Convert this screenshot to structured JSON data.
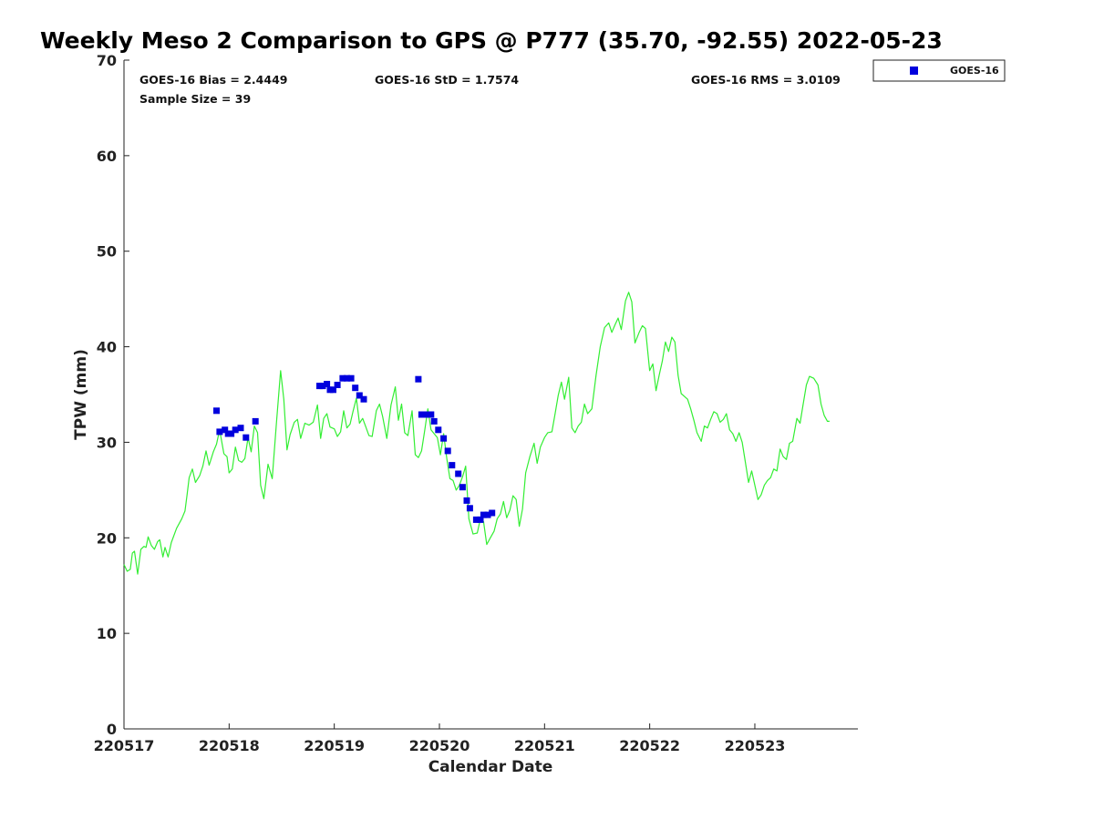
{
  "chart_data": {
    "type": "scatter",
    "title": "Weekly Meso 2 Comparison to GPS @ P777 (35.70, -92.55) 2022-05-23",
    "xlabel": "Calendar Date",
    "ylabel": "TPW (mm)",
    "xlim": [
      0,
      6.98
    ],
    "ylim": [
      0,
      70
    ],
    "x_ticks": [
      {
        "value": 0,
        "label": "220517"
      },
      {
        "value": 1,
        "label": "220518"
      },
      {
        "value": 2,
        "label": "220519"
      },
      {
        "value": 3,
        "label": "220520"
      },
      {
        "value": 4,
        "label": "220521"
      },
      {
        "value": 5,
        "label": "220522"
      },
      {
        "value": 6,
        "label": "220523"
      }
    ],
    "y_ticks": [
      0,
      10,
      20,
      30,
      40,
      50,
      60,
      70
    ],
    "grid": false,
    "legend": {
      "position": "top-right",
      "entries": [
        "GOES-16"
      ]
    },
    "stats": {
      "bias": "GOES-16 Bias = 2.4449",
      "std": "GOES-16 StD = 1.7574",
      "rms": "GOES-16 RMS = 3.0109",
      "sample_size": "Sample Size = 39"
    },
    "series": [
      {
        "name": "GOES-16",
        "kind": "scatter",
        "color": "#0000dd",
        "points": [
          [
            0.88,
            33.3
          ],
          [
            0.91,
            31.1
          ],
          [
            0.96,
            31.3
          ],
          [
            0.99,
            30.9
          ],
          [
            1.02,
            30.9
          ],
          [
            1.06,
            31.3
          ],
          [
            1.11,
            31.5
          ],
          [
            1.16,
            30.5
          ],
          [
            1.25,
            32.2
          ],
          [
            1.86,
            35.9
          ],
          [
            1.89,
            35.9
          ],
          [
            1.93,
            36.1
          ],
          [
            1.96,
            35.5
          ],
          [
            1.99,
            35.5
          ],
          [
            2.03,
            36.0
          ],
          [
            2.08,
            36.7
          ],
          [
            2.12,
            36.7
          ],
          [
            2.16,
            36.7
          ],
          [
            2.2,
            35.7
          ],
          [
            2.24,
            34.9
          ],
          [
            2.28,
            34.5
          ],
          [
            2.8,
            36.6
          ],
          [
            2.83,
            32.9
          ],
          [
            2.87,
            32.9
          ],
          [
            2.92,
            32.9
          ],
          [
            2.95,
            32.2
          ],
          [
            2.99,
            31.3
          ],
          [
            3.04,
            30.4
          ],
          [
            3.08,
            29.1
          ],
          [
            3.12,
            27.6
          ],
          [
            3.18,
            26.7
          ],
          [
            3.22,
            25.3
          ],
          [
            3.26,
            23.9
          ],
          [
            3.29,
            23.1
          ],
          [
            3.35,
            21.9
          ],
          [
            3.39,
            21.9
          ],
          [
            3.42,
            22.4
          ],
          [
            3.46,
            22.4
          ],
          [
            3.5,
            22.6
          ]
        ]
      },
      {
        "name": "GPS",
        "kind": "line",
        "color": "#33ee33",
        "points": [
          [
            0,
            17.2
          ],
          [
            0.03,
            16.5
          ],
          [
            0.06,
            16.7
          ],
          [
            0.08,
            18.4
          ],
          [
            0.1,
            18.6
          ],
          [
            0.13,
            16.2
          ],
          [
            0.16,
            18.8
          ],
          [
            0.19,
            19.1
          ],
          [
            0.21,
            19.0
          ],
          [
            0.23,
            20.1
          ],
          [
            0.26,
            19.2
          ],
          [
            0.29,
            18.8
          ],
          [
            0.32,
            19.6
          ],
          [
            0.34,
            19.8
          ],
          [
            0.37,
            18.0
          ],
          [
            0.39,
            19.0
          ],
          [
            0.42,
            18.0
          ],
          [
            0.45,
            19.5
          ],
          [
            0.5,
            21.0
          ],
          [
            0.55,
            22.0
          ],
          [
            0.58,
            22.8
          ],
          [
            0.6,
            24.5
          ],
          [
            0.62,
            26.3
          ],
          [
            0.65,
            27.2
          ],
          [
            0.68,
            25.8
          ],
          [
            0.72,
            26.5
          ],
          [
            0.75,
            27.5
          ],
          [
            0.78,
            29.1
          ],
          [
            0.81,
            27.6
          ],
          [
            0.85,
            29.0
          ],
          [
            0.88,
            29.8
          ],
          [
            0.91,
            31.3
          ],
          [
            0.95,
            28.8
          ],
          [
            0.98,
            28.5
          ],
          [
            1.0,
            26.8
          ],
          [
            1.03,
            27.2
          ],
          [
            1.06,
            29.5
          ],
          [
            1.09,
            28.1
          ],
          [
            1.12,
            27.9
          ],
          [
            1.15,
            28.3
          ],
          [
            1.18,
            30.5
          ],
          [
            1.21,
            29.0
          ],
          [
            1.24,
            31.7
          ],
          [
            1.27,
            31.0
          ],
          [
            1.3,
            25.5
          ],
          [
            1.33,
            24.1
          ],
          [
            1.37,
            27.7
          ],
          [
            1.41,
            26.2
          ],
          [
            1.45,
            32.0
          ],
          [
            1.49,
            37.5
          ],
          [
            1.52,
            34.5
          ],
          [
            1.55,
            29.2
          ],
          [
            1.58,
            30.8
          ],
          [
            1.62,
            32.1
          ],
          [
            1.65,
            32.4
          ],
          [
            1.68,
            30.4
          ],
          [
            1.72,
            32.0
          ],
          [
            1.76,
            31.8
          ],
          [
            1.8,
            32.1
          ],
          [
            1.84,
            33.9
          ],
          [
            1.87,
            30.4
          ],
          [
            1.9,
            32.5
          ],
          [
            1.93,
            33.0
          ],
          [
            1.96,
            31.6
          ],
          [
            2.0,
            31.4
          ],
          [
            2.03,
            30.6
          ],
          [
            2.06,
            31.1
          ],
          [
            2.09,
            33.3
          ],
          [
            2.12,
            31.5
          ],
          [
            2.15,
            31.9
          ],
          [
            2.18,
            33.3
          ],
          [
            2.21,
            34.6
          ],
          [
            2.24,
            32.0
          ],
          [
            2.27,
            32.5
          ],
          [
            2.3,
            31.6
          ],
          [
            2.33,
            30.7
          ],
          [
            2.36,
            30.6
          ],
          [
            2.4,
            33.3
          ],
          [
            2.43,
            34.0
          ],
          [
            2.46,
            32.7
          ],
          [
            2.5,
            30.4
          ],
          [
            2.54,
            33.9
          ],
          [
            2.58,
            35.8
          ],
          [
            2.61,
            32.3
          ],
          [
            2.64,
            34.0
          ],
          [
            2.67,
            31.0
          ],
          [
            2.7,
            30.7
          ],
          [
            2.74,
            33.3
          ],
          [
            2.77,
            28.7
          ],
          [
            2.8,
            28.4
          ],
          [
            2.83,
            29.1
          ],
          [
            2.86,
            31.2
          ],
          [
            2.89,
            33.5
          ],
          [
            2.92,
            31.3
          ],
          [
            2.95,
            30.9
          ],
          [
            2.98,
            30.5
          ],
          [
            3.01,
            28.7
          ],
          [
            3.04,
            30.9
          ],
          [
            3.07,
            28.3
          ],
          [
            3.1,
            26.2
          ],
          [
            3.13,
            26.0
          ],
          [
            3.16,
            25.0
          ],
          [
            3.19,
            25.5
          ],
          [
            3.22,
            26.4
          ],
          [
            3.25,
            27.5
          ],
          [
            3.28,
            22.0
          ],
          [
            3.32,
            20.4
          ],
          [
            3.36,
            20.5
          ],
          [
            3.39,
            22.0
          ],
          [
            3.42,
            21.7
          ],
          [
            3.45,
            19.3
          ],
          [
            3.48,
            19.9
          ],
          [
            3.52,
            20.7
          ],
          [
            3.55,
            22.0
          ],
          [
            3.58,
            22.5
          ],
          [
            3.61,
            23.8
          ],
          [
            3.64,
            22.1
          ],
          [
            3.67,
            22.9
          ],
          [
            3.7,
            24.4
          ],
          [
            3.73,
            24.0
          ],
          [
            3.76,
            21.2
          ],
          [
            3.79,
            23.0
          ],
          [
            3.82,
            26.8
          ],
          [
            3.86,
            28.5
          ],
          [
            3.9,
            29.9
          ],
          [
            3.93,
            27.8
          ],
          [
            3.96,
            29.5
          ],
          [
            4.0,
            30.5
          ],
          [
            4.03,
            31.0
          ],
          [
            4.07,
            31.1
          ],
          [
            4.1,
            33.0
          ],
          [
            4.13,
            34.9
          ],
          [
            4.16,
            36.3
          ],
          [
            4.19,
            34.5
          ],
          [
            4.23,
            36.8
          ],
          [
            4.26,
            31.5
          ],
          [
            4.29,
            31.0
          ],
          [
            4.32,
            31.7
          ],
          [
            4.35,
            32.1
          ],
          [
            4.38,
            34.0
          ],
          [
            4.41,
            33.0
          ],
          [
            4.45,
            33.5
          ],
          [
            4.49,
            37.0
          ],
          [
            4.53,
            40.0
          ],
          [
            4.57,
            42.0
          ],
          [
            4.61,
            42.5
          ],
          [
            4.64,
            41.5
          ],
          [
            4.67,
            42.3
          ],
          [
            4.7,
            43.0
          ],
          [
            4.73,
            41.8
          ],
          [
            4.77,
            44.8
          ],
          [
            4.8,
            45.7
          ],
          [
            4.83,
            44.7
          ],
          [
            4.86,
            40.4
          ],
          [
            4.9,
            41.5
          ],
          [
            4.93,
            42.2
          ],
          [
            4.96,
            41.9
          ],
          [
            5.0,
            37.5
          ],
          [
            5.03,
            38.2
          ],
          [
            5.06,
            35.4
          ],
          [
            5.09,
            37.0
          ],
          [
            5.12,
            38.5
          ],
          [
            5.15,
            40.5
          ],
          [
            5.18,
            39.5
          ],
          [
            5.21,
            41.0
          ],
          [
            5.24,
            40.5
          ],
          [
            5.27,
            37.0
          ],
          [
            5.3,
            35.1
          ],
          [
            5.33,
            34.8
          ],
          [
            5.36,
            34.5
          ],
          [
            5.39,
            33.5
          ],
          [
            5.42,
            32.3
          ],
          [
            5.45,
            31.0
          ],
          [
            5.49,
            30.1
          ],
          [
            5.52,
            31.7
          ],
          [
            5.55,
            31.5
          ],
          [
            5.58,
            32.4
          ],
          [
            5.61,
            33.2
          ],
          [
            5.64,
            33.0
          ],
          [
            5.67,
            32.1
          ],
          [
            5.7,
            32.4
          ],
          [
            5.73,
            33.0
          ],
          [
            5.76,
            31.3
          ],
          [
            5.79,
            30.9
          ],
          [
            5.82,
            30.1
          ],
          [
            5.85,
            31.0
          ],
          [
            5.88,
            30.0
          ],
          [
            5.91,
            27.9
          ],
          [
            5.94,
            25.8
          ],
          [
            5.97,
            27.0
          ],
          [
            6.0,
            25.5
          ],
          [
            6.03,
            24.0
          ],
          [
            6.06,
            24.5
          ],
          [
            6.09,
            25.5
          ],
          [
            6.12,
            26.0
          ],
          [
            6.15,
            26.3
          ],
          [
            6.18,
            27.2
          ],
          [
            6.21,
            27.0
          ],
          [
            6.24,
            29.3
          ],
          [
            6.27,
            28.5
          ],
          [
            6.3,
            28.2
          ],
          [
            6.33,
            29.9
          ],
          [
            6.36,
            30.1
          ],
          [
            6.4,
            32.5
          ],
          [
            6.43,
            32.0
          ],
          [
            6.46,
            34.0
          ],
          [
            6.49,
            36.0
          ],
          [
            6.52,
            36.9
          ],
          [
            6.56,
            36.7
          ],
          [
            6.6,
            36.0
          ],
          [
            6.63,
            34.0
          ],
          [
            6.66,
            32.8
          ],
          [
            6.69,
            32.2
          ],
          [
            6.71,
            32.2
          ]
        ]
      }
    ]
  }
}
